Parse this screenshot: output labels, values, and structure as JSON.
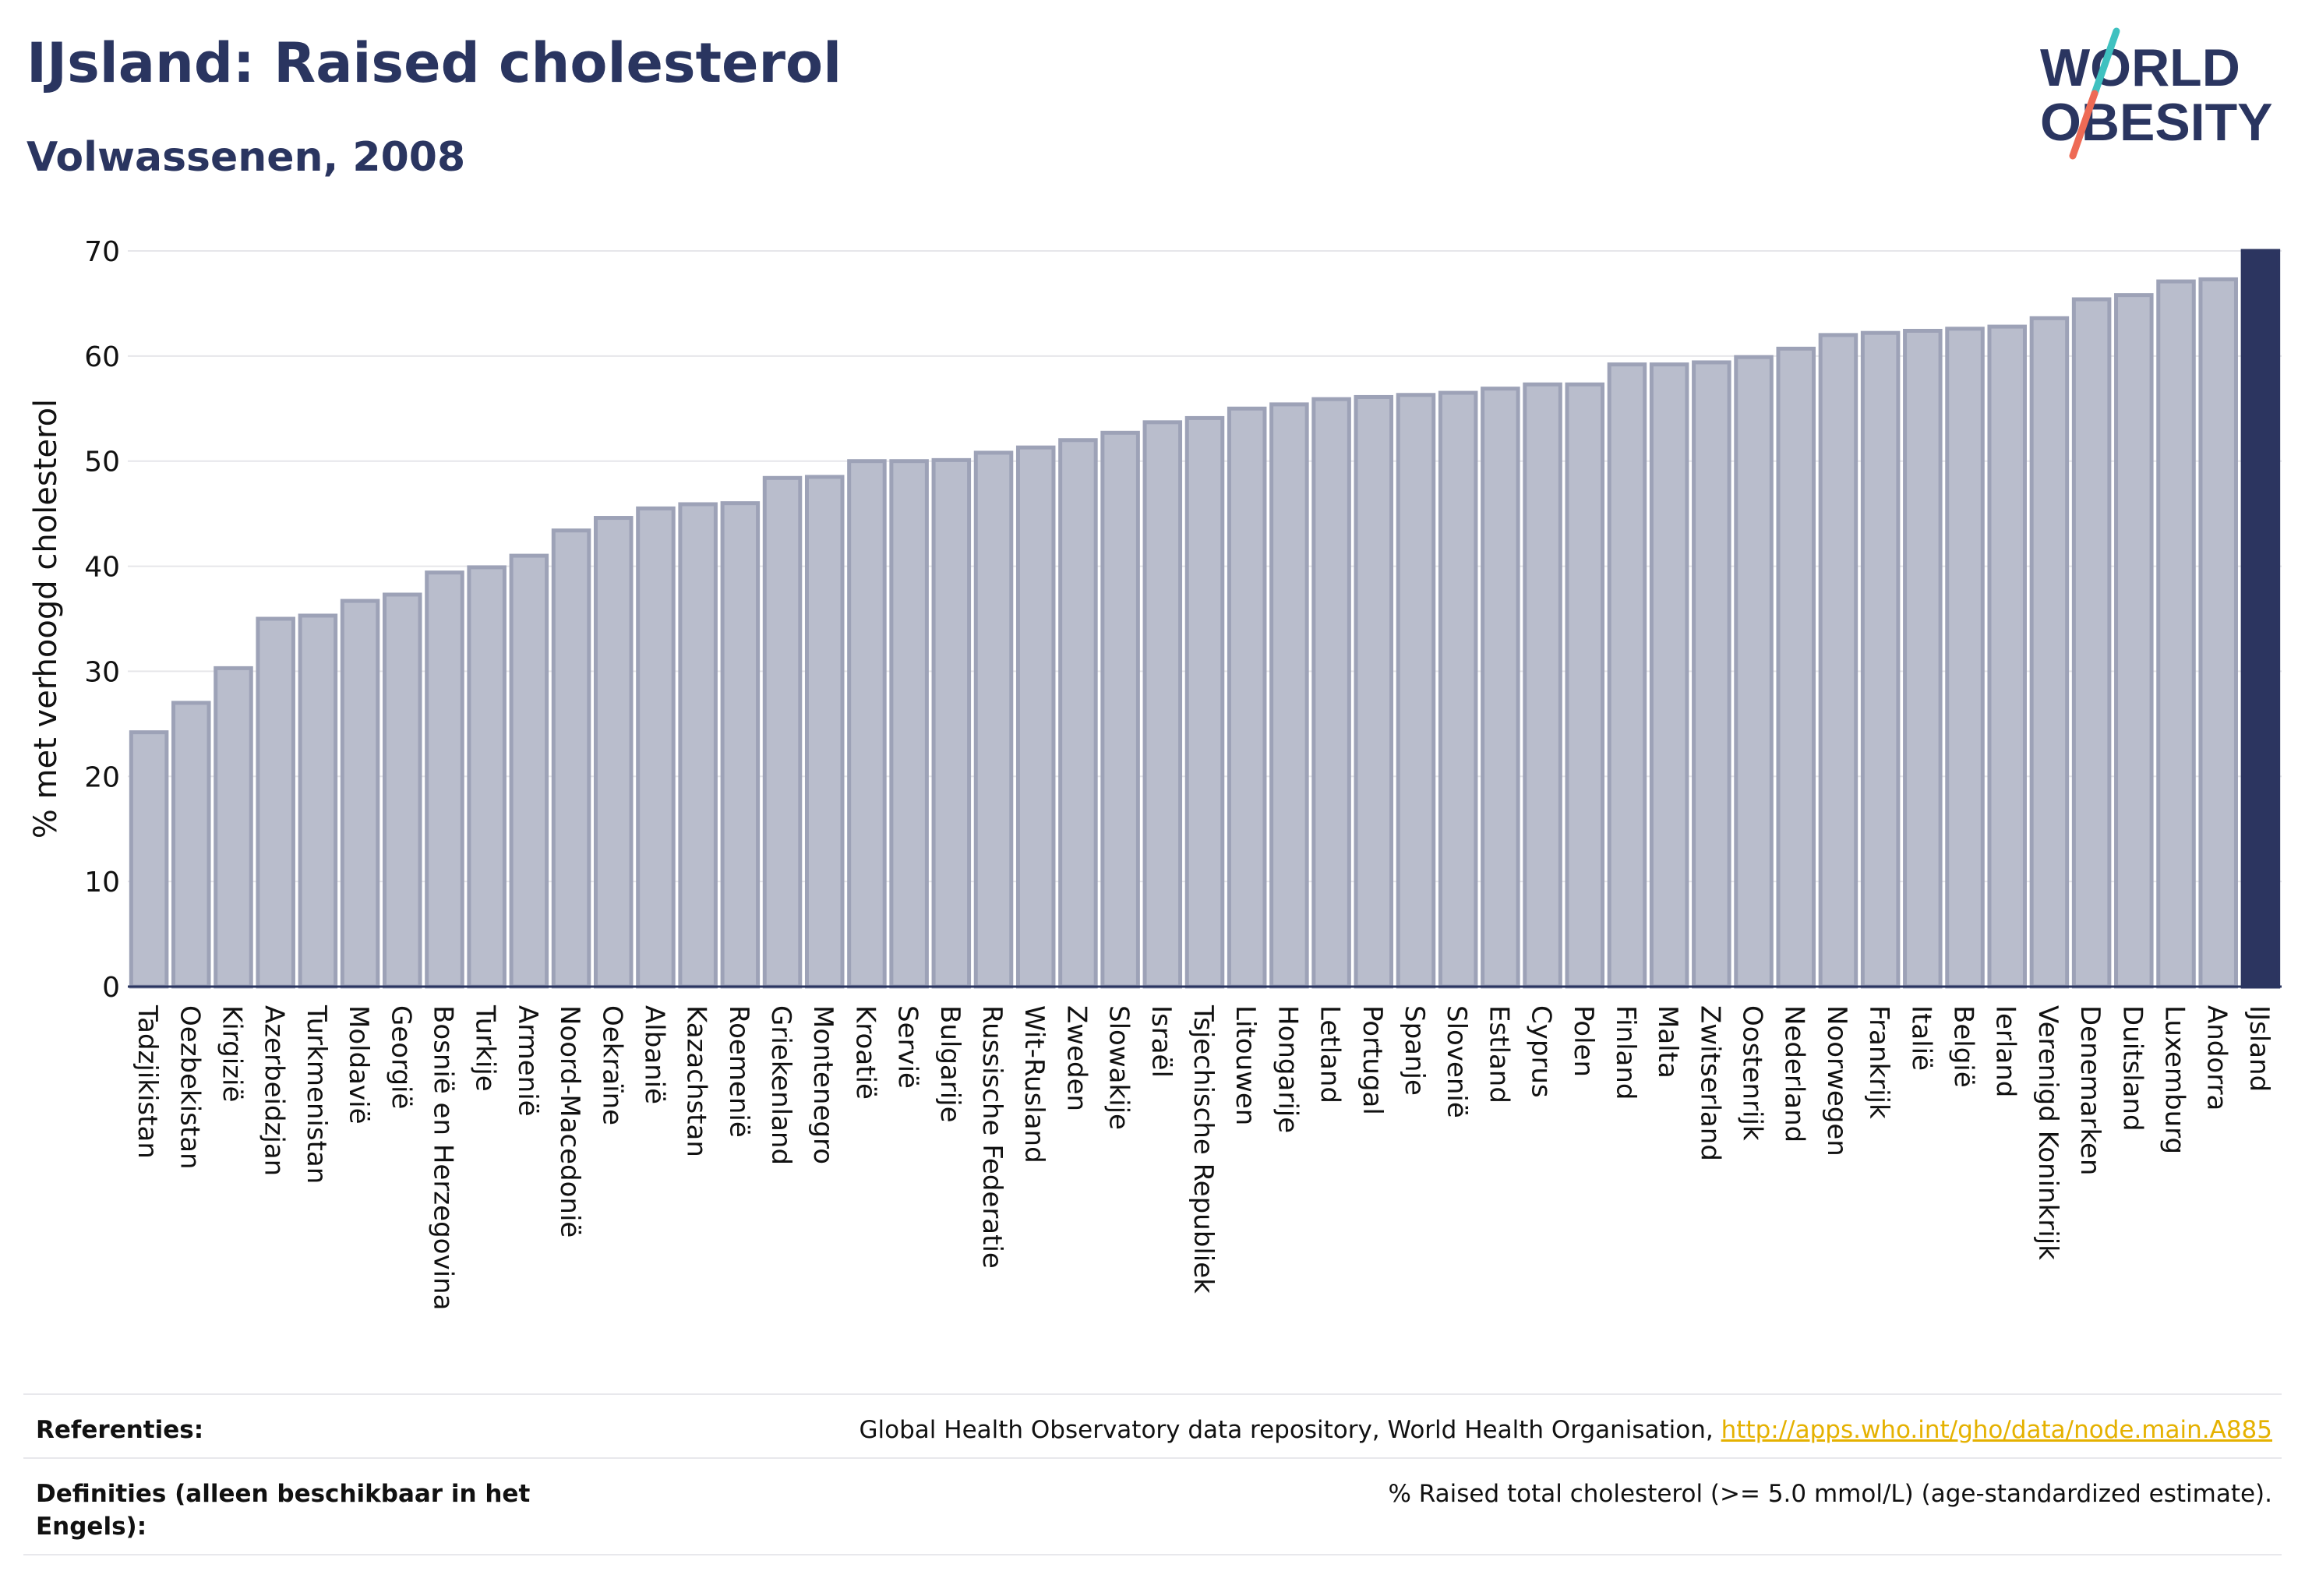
{
  "header": {
    "title": "IJsland: Raised cholesterol",
    "subtitle": "Volwassenen, 2008",
    "logo_line1": "WORLD",
    "logo_line2": "OBESITY"
  },
  "chart_data": {
    "type": "bar",
    "ylabel": "% met verhoogd cholesterol",
    "xlabel": "",
    "ylim": [
      0,
      70
    ],
    "yticks": [
      0,
      10,
      20,
      30,
      40,
      50,
      60,
      70
    ],
    "grid": true,
    "highlight_category": "IJsland",
    "colors": {
      "bar": "#b9bdcc",
      "bar_border": "#9da2b7",
      "highlight": "#2c3560",
      "grid": "#e6e6ea"
    },
    "categories": [
      "Tadzjikistan",
      "Oezbekistan",
      "Kirgizië",
      "Azerbeidzjan",
      "Turkmenistan",
      "Moldavië",
      "Georgië",
      "Bosnië en Herzegovina",
      "Turkije",
      "Armenië",
      "Noord-Macedonië",
      "Oekraïne",
      "Albanië",
      "Kazachstan",
      "Roemenië",
      "Griekenland",
      "Montenegro",
      "Kroatië",
      "Servië",
      "Bulgarije",
      "Russische Federatie",
      "Wit-Rusland",
      "Zweden",
      "Slowakije",
      "Israël",
      "Tsjechische Republiek",
      "Litouwen",
      "Hongarije",
      "Letland",
      "Portugal",
      "Spanje",
      "Slovenië",
      "Estland",
      "Cyprus",
      "Polen",
      "Finland",
      "Malta",
      "Zwitserland",
      "Oostenrijk",
      "Nederland",
      "Noorwegen",
      "Frankrijk",
      "Italië",
      "België",
      "Ierland",
      "Verenigd Koninkrijk",
      "Denemarken",
      "Duitsland",
      "Luxemburg",
      "Andorra",
      "IJsland"
    ],
    "values": [
      24.2,
      27.0,
      30.3,
      35.0,
      35.3,
      36.7,
      37.3,
      39.4,
      39.9,
      41.0,
      43.4,
      44.6,
      45.5,
      45.9,
      46.0,
      48.4,
      48.5,
      50.0,
      50.0,
      50.1,
      50.8,
      51.3,
      52.0,
      52.7,
      53.7,
      54.1,
      55.0,
      55.4,
      55.9,
      56.1,
      56.3,
      56.5,
      56.9,
      57.3,
      57.3,
      59.2,
      59.2,
      59.4,
      59.9,
      60.7,
      62.0,
      62.2,
      62.4,
      62.6,
      62.8,
      63.6,
      65.4,
      65.8,
      67.1,
      67.3,
      70.0
    ]
  },
  "footer": {
    "references_label": "Referenties:",
    "references_text": "Global Health Observatory data repository, World Health Organisation, ",
    "references_link": "http://apps.who.int/gho/data/node.main.A885",
    "definitions_label": "Definities (alleen beschikbaar in het Engels):",
    "definitions_text": "% Raised total cholesterol (>= 5.0 mmol/L) (age-standardized estimate)."
  }
}
